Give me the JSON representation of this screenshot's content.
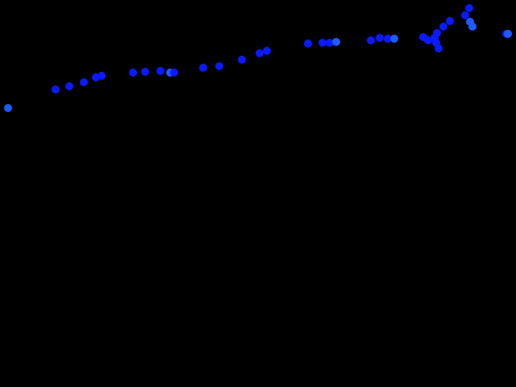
{
  "scene": {
    "background_color": "#000000",
    "dot_colors": {
      "primary": "#0a1aff",
      "secondary": "#1e5aff"
    },
    "dot_count": 43
  }
}
